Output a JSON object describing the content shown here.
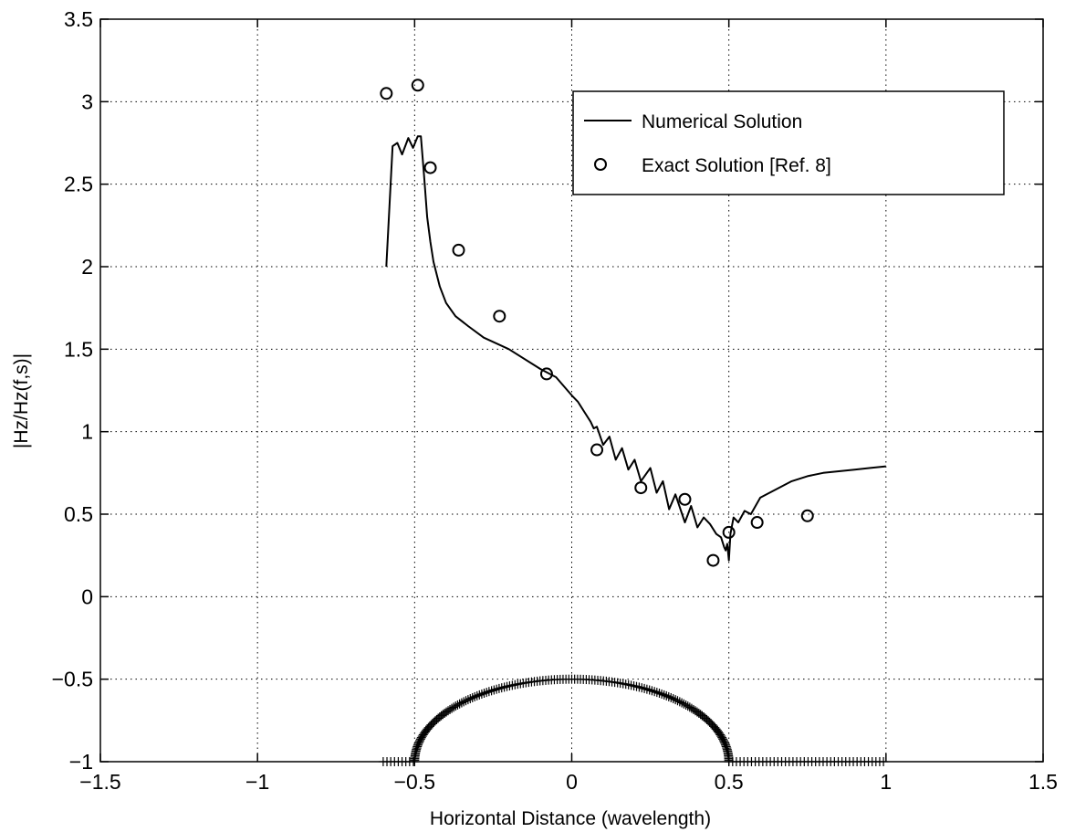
{
  "chart_data": {
    "type": "line",
    "title": "",
    "xlabel": "Horizontal Distance (wavelength)",
    "ylabel": "|Hz/Hz(f,s)|",
    "xlim": [
      -1.5,
      1.5
    ],
    "ylim": [
      -1,
      3.5
    ],
    "xticks": [
      -1.5,
      -1,
      -0.5,
      0,
      0.5,
      1,
      1.5
    ],
    "xtick_labels": [
      "−1.5",
      "−1",
      "−0.5",
      "0",
      "0.5",
      "1",
      "1.5"
    ],
    "yticks": [
      -1,
      -0.5,
      0,
      0.5,
      1,
      1.5,
      2,
      2.5,
      3,
      3.5
    ],
    "ytick_labels": [
      "−1",
      "−0.5",
      "0",
      "0.5",
      "1",
      "1.5",
      "2",
      "2.5",
      "3",
      "3.5"
    ],
    "grid": true,
    "grid_style": "dotted",
    "legend_position": "top-right",
    "series": [
      {
        "name": "Numerical Solution",
        "style": "line",
        "color": "#000000",
        "x": [
          -0.59,
          -0.57,
          -0.555,
          -0.54,
          -0.52,
          -0.505,
          -0.49,
          -0.48,
          -0.47,
          -0.46,
          -0.45,
          -0.44,
          -0.42,
          -0.4,
          -0.37,
          -0.33,
          -0.28,
          -0.2,
          -0.1,
          -0.05,
          0.0,
          0.02,
          0.04,
          0.06,
          0.07,
          0.08,
          0.1,
          0.12,
          0.14,
          0.16,
          0.18,
          0.2,
          0.22,
          0.25,
          0.27,
          0.29,
          0.31,
          0.33,
          0.36,
          0.38,
          0.4,
          0.42,
          0.44,
          0.46,
          0.475,
          0.485,
          0.49,
          0.495,
          0.5,
          0.505,
          0.515,
          0.53,
          0.55,
          0.57,
          0.6,
          0.65,
          0.7,
          0.75,
          0.8,
          0.85,
          0.9,
          0.95,
          1.0
        ],
        "y": [
          2.0,
          2.73,
          2.75,
          2.68,
          2.78,
          2.72,
          2.79,
          2.79,
          2.55,
          2.3,
          2.15,
          2.03,
          1.88,
          1.78,
          1.7,
          1.64,
          1.57,
          1.5,
          1.38,
          1.33,
          1.22,
          1.18,
          1.12,
          1.06,
          1.02,
          1.03,
          0.92,
          0.97,
          0.83,
          0.9,
          0.77,
          0.83,
          0.7,
          0.78,
          0.63,
          0.7,
          0.53,
          0.62,
          0.45,
          0.55,
          0.42,
          0.48,
          0.44,
          0.38,
          0.36,
          0.3,
          0.28,
          0.32,
          0.22,
          0.38,
          0.48,
          0.45,
          0.52,
          0.5,
          0.6,
          0.65,
          0.7,
          0.73,
          0.75,
          0.76,
          0.77,
          0.78,
          0.79
        ]
      },
      {
        "name": "Exact Solution [Ref. 8]",
        "style": "markers",
        "marker": "circle",
        "color": "#000000",
        "x": [
          -0.59,
          -0.49,
          -0.45,
          -0.36,
          -0.23,
          -0.08,
          0.08,
          0.22,
          0.36,
          0.45,
          0.5,
          0.59,
          0.75
        ],
        "y": [
          3.05,
          3.1,
          2.6,
          2.1,
          1.7,
          1.35,
          0.89,
          0.66,
          0.59,
          0.22,
          0.39,
          0.45,
          0.49
        ]
      },
      {
        "style": "plus-markers",
        "color": "#000000",
        "description_free": true,
        "flat_left_x": [
          -0.6,
          -0.5
        ],
        "arc_center": [
          0,
          -1
        ],
        "arc_radius": 0.5,
        "flat_right_x": [
          0.5,
          1.0
        ],
        "baseline_y": -1
      }
    ]
  }
}
